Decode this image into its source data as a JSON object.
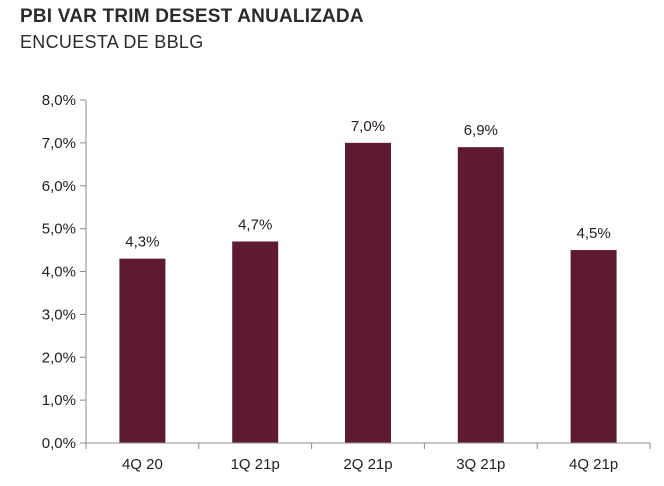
{
  "chart_data": {
    "type": "bar",
    "title": "PBI VAR TRIM DESEST ANUALIZADA",
    "subtitle": "ENCUESTA DE BBLG",
    "categories": [
      "4Q 20",
      "1Q 21p",
      "2Q 21p",
      "3Q 21p",
      "4Q 21p"
    ],
    "values": [
      4.3,
      4.7,
      7.0,
      6.9,
      4.5
    ],
    "data_labels": [
      "4,3%",
      "4,7%",
      "7,0%",
      "6,9%",
      "4,5%"
    ],
    "y_ticks": [
      0,
      1,
      2,
      3,
      4,
      5,
      6,
      7,
      8
    ],
    "y_tick_labels": [
      "0,0%",
      "1,0%",
      "2,0%",
      "3,0%",
      "4,0%",
      "5,0%",
      "6,0%",
      "7,0%",
      "8,0%"
    ],
    "ylim": [
      0,
      8
    ],
    "xlabel": "",
    "ylabel": "",
    "grid": false,
    "bar_color": "#5f1a33"
  }
}
